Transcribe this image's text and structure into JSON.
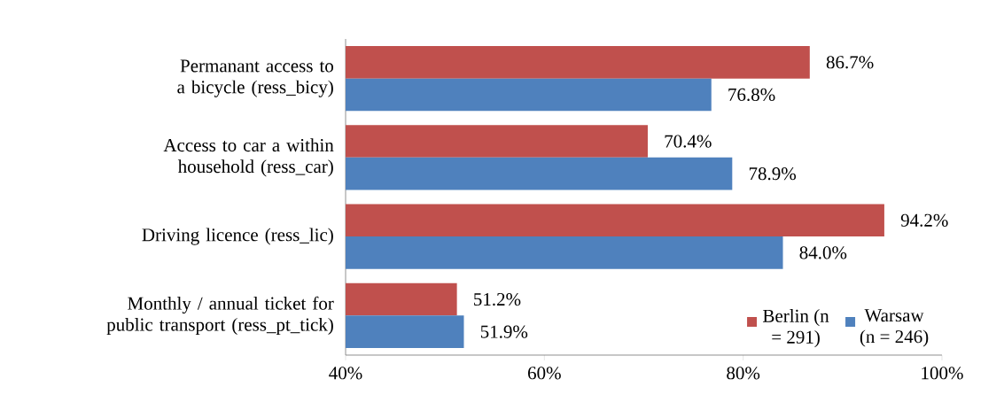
{
  "chart_data": {
    "type": "bar",
    "orientation": "horizontal",
    "categories": [
      "Permanant access to a bicycle (ress_bicy)",
      "Access to car a within household (ress_car)",
      "Driving licence (ress_lic)",
      "Monthly / annual ticket for public transport (ress_pt_tick)"
    ],
    "series": [
      {
        "name": "Berlin (n = 291)",
        "color": "#c0504d",
        "values": [
          86.7,
          70.4,
          94.2,
          51.2
        ],
        "value_labels": [
          "86.7%",
          "70.4%",
          "94.2%",
          "51.2%"
        ]
      },
      {
        "name": "Warsaw (n = 246)",
        "color": "#4f81bd",
        "values": [
          76.8,
          78.9,
          84.0,
          51.9
        ],
        "value_labels": [
          "76.8%",
          "78.9%",
          "84.0%",
          "51.9%"
        ]
      }
    ],
    "xlim": [
      40,
      100
    ],
    "xticks": [
      {
        "value": 40,
        "label": "40%"
      },
      {
        "value": 60,
        "label": "60%"
      },
      {
        "value": 80,
        "label": "80%"
      },
      {
        "value": 100,
        "label": "100%"
      }
    ],
    "grid": false,
    "legend": "bottom right"
  }
}
